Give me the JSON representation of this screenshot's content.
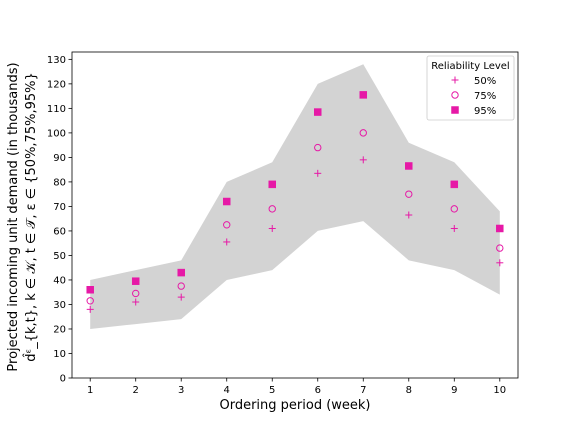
{
  "chart_data": {
    "type": "scatter",
    "title": "",
    "xlabel": "Ordering period (week)",
    "ylabel_line1": "Projected incoming unit demand (in thousands)",
    "ylabel_line2": "d̂ᵋ_{k,t}, k ∈ 𝒦,  t ∈ 𝒯, ε ∈ {50%,75%,95%}",
    "x": [
      1,
      2,
      3,
      4,
      5,
      6,
      7,
      8,
      9,
      10
    ],
    "xlim": [
      0.6,
      10.4
    ],
    "ylim": [
      0,
      133
    ],
    "yticks": [
      0,
      10,
      20,
      30,
      40,
      50,
      60,
      70,
      80,
      90,
      100,
      110,
      120,
      130
    ],
    "xticks": [
      1,
      2,
      3,
      4,
      5,
      6,
      7,
      8,
      9,
      10
    ],
    "band": {
      "upper": [
        40,
        44,
        48,
        80,
        88,
        120,
        128,
        96,
        88,
        68
      ],
      "lower": [
        20,
        22,
        24,
        40,
        44,
        60,
        64,
        48,
        44,
        34
      ],
      "color": "#d3d3d3"
    },
    "series": [
      {
        "name": "50%",
        "marker": "plus",
        "values": [
          28,
          31,
          33,
          55.5,
          61,
          83.5,
          89,
          66.5,
          61,
          47
        ]
      },
      {
        "name": "75%",
        "marker": "circle",
        "values": [
          31.5,
          34.5,
          37.5,
          62.5,
          69,
          94,
          100,
          75,
          69,
          53
        ]
      },
      {
        "name": "95%",
        "marker": "square",
        "values": [
          36,
          39.5,
          43,
          72,
          79,
          108.5,
          115.5,
          86.5,
          79,
          61
        ]
      }
    ],
    "marker_color": "#e619a6",
    "legend": {
      "title": "Reliability Level",
      "position": "top-right"
    },
    "grid": false
  }
}
